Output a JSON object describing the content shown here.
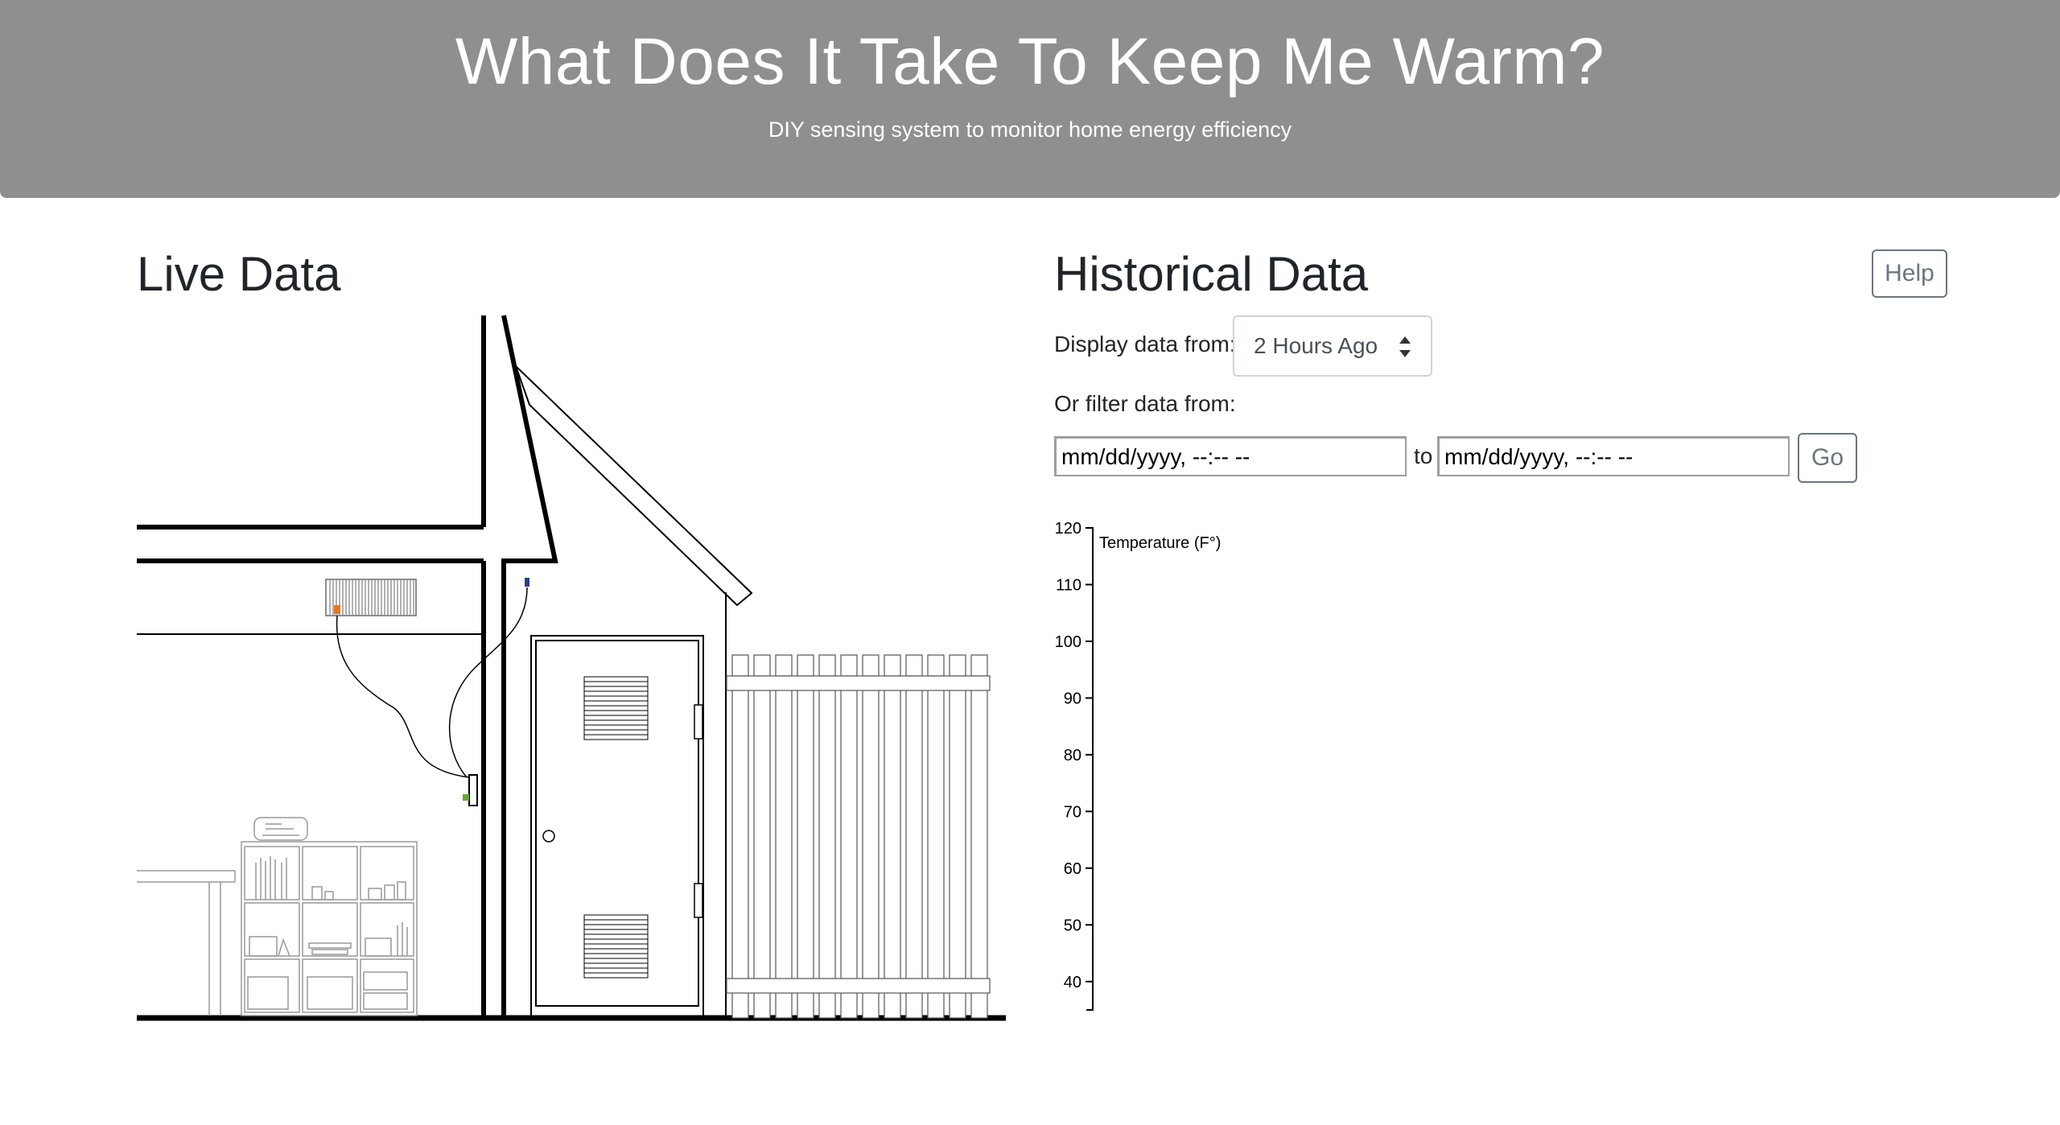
{
  "header": {
    "title": "What Does It Take To Keep Me Warm?",
    "subtitle": "DIY sensing system to monitor home energy efficiency"
  },
  "live": {
    "title": "Live Data"
  },
  "historical": {
    "title": "Historical Data",
    "help_label": "Help",
    "display_label": "Display data from:",
    "display_value": "2 Hours Ago",
    "filter_label": "Or filter data from:",
    "from_placeholder": "mm/dd/yyyy, --:-- --",
    "to_label": "to",
    "to_placeholder": "mm/dd/yyyy, --:-- --",
    "go_label": "Go"
  },
  "chart_data": {
    "type": "line",
    "title": "",
    "ylabel": "Temperature (F°)",
    "xlabel": "",
    "ylim": [
      35,
      120
    ],
    "yticks": [
      40,
      50,
      60,
      70,
      80,
      90,
      100,
      110,
      120
    ],
    "series": []
  }
}
